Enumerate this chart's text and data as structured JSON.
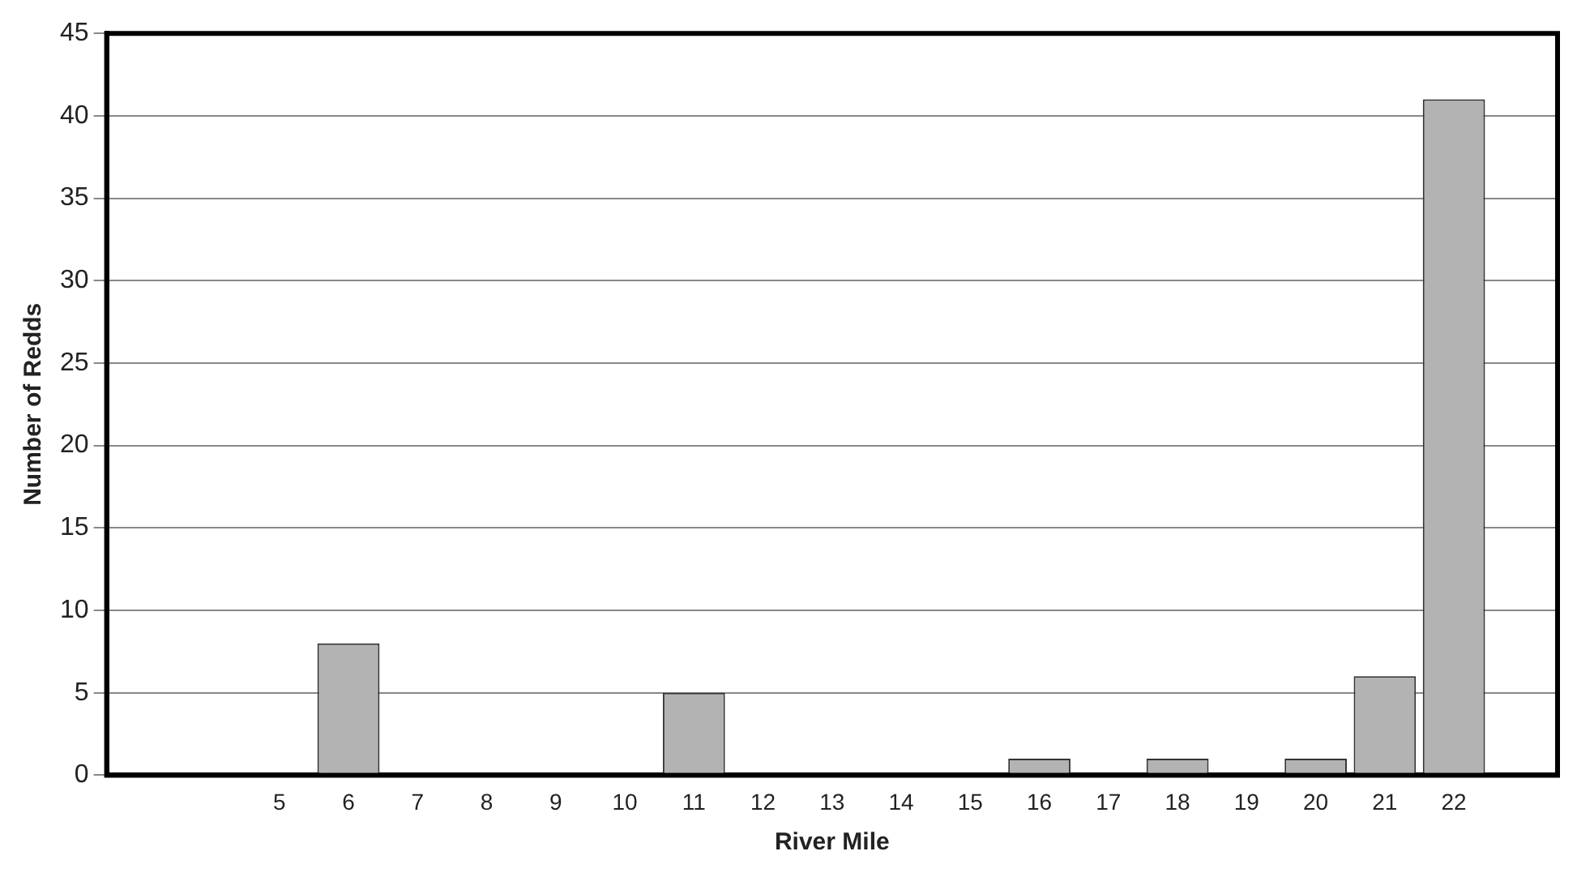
{
  "chart_data": {
    "type": "bar",
    "xlabel": "River Mile",
    "ylabel": "Number of Redds",
    "categories": [
      null,
      null,
      "5",
      "6",
      "7",
      "8",
      "9",
      "10",
      "11",
      "12",
      "13",
      "14",
      "15",
      "16",
      "17",
      "18",
      "19",
      "20",
      "21",
      "22",
      null
    ],
    "values": [
      null,
      null,
      0,
      8,
      0,
      0,
      0,
      0,
      5,
      0,
      0,
      0,
      0,
      1,
      0,
      1,
      0,
      1,
      6,
      41,
      null
    ],
    "color": "#b3b3b3",
    "ylim": [
      0,
      45
    ],
    "yticks": [
      0,
      5,
      10,
      15,
      20,
      25,
      30,
      35,
      40,
      45
    ],
    "grid": "y",
    "legend": false
  }
}
